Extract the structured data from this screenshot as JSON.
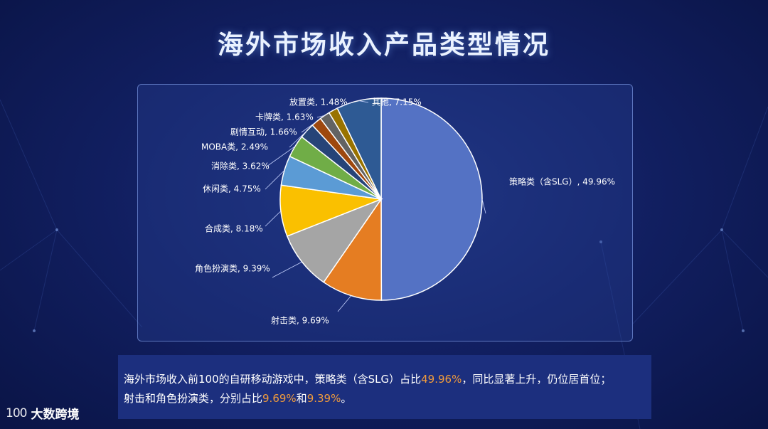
{
  "title": "海外市场收入产品类型情况",
  "chart_data": {
    "type": "pie",
    "title": "海外市场收入产品类型情况",
    "slices": [
      {
        "name": "策略类（含SLG）",
        "label": "策略类（含SLG）, 49.96%",
        "value": 49.96,
        "color": "#5472c4"
      },
      {
        "name": "射击类",
        "label": "射击类, 9.69%",
        "value": 9.69,
        "color": "#e57d22"
      },
      {
        "name": "角色扮演类",
        "label": "角色扮演类, 9.39%",
        "value": 9.39,
        "color": "#a5a5a5"
      },
      {
        "name": "合成类",
        "label": "合成类, 8.18%",
        "value": 8.18,
        "color": "#fac000"
      },
      {
        "name": "休闲类",
        "label": "休闲类, 4.75%",
        "value": 4.75,
        "color": "#5b9bd5"
      },
      {
        "name": "消除类",
        "label": "消除类, 3.62%",
        "value": 3.62,
        "color": "#70ad47"
      },
      {
        "name": "MOBA类",
        "label": "MOBA类, 2.49%",
        "value": 2.49,
        "color": "#264478"
      },
      {
        "name": "剧情互动",
        "label": "剧情互动, 1.66%",
        "value": 1.66,
        "color": "#9e480e"
      },
      {
        "name": "卡牌类",
        "label": "卡牌类, 1.63%",
        "value": 1.63,
        "color": "#636363"
      },
      {
        "name": "放置类",
        "label": "放置类, 1.48%",
        "value": 1.48,
        "color": "#997300"
      },
      {
        "name": "其他",
        "label": "其他, 7.15%",
        "value": 7.15,
        "color": "#2e5a94"
      }
    ],
    "start_angle_deg": 0,
    "direction": "clockwise",
    "slice_border_color": "#ffffff",
    "label_color": "#ffffff"
  },
  "summary": {
    "line1_a": "海外市场收入前100的自研移动游戏中，策略类（含SLG）占比",
    "line1_b": "49.96%",
    "line1_c": "，同比显著上升，仍位居首位；",
    "line2_a": "射击和角色扮演类，分别占比",
    "line2_b": "9.69%",
    "line2_c": "和",
    "line2_d": "9.39%",
    "line2_e": "。",
    "highlight_color": "#f09b3c"
  },
  "logo": {
    "mark": "100",
    "text": "大数跨境"
  }
}
